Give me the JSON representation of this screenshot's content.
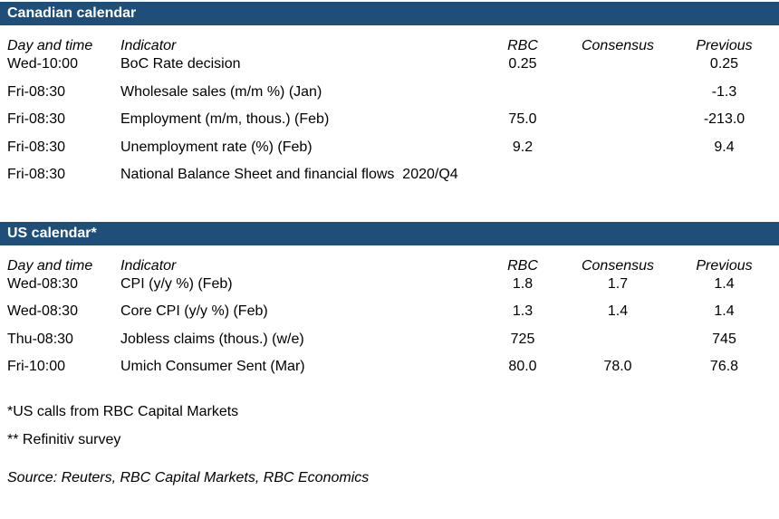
{
  "colors": {
    "section_header_bg": "#1F4E79",
    "section_header_text": "#FFFFFF",
    "body_text": "#000000"
  },
  "tables": [
    {
      "title": "Canadian calendar",
      "columns": [
        "Day and time",
        "Indicator",
        "RBC",
        "Consensus",
        "Previous"
      ],
      "rows": [
        {
          "time": "Wed-10:00",
          "indicator": "BoC Rate decision",
          "rbc": "0.25",
          "consensus": "",
          "previous": "0.25"
        },
        {
          "time": "Fri-08:30",
          "indicator": "Wholesale sales (m/m %) (Jan)",
          "rbc": "",
          "consensus": "",
          "previous": "-1.3"
        },
        {
          "time": "Fri-08:30",
          "indicator": "Employment (m/m, thous.) (Feb)",
          "rbc": "75.0",
          "consensus": "",
          "previous": "-213.0"
        },
        {
          "time": "Fri-08:30",
          "indicator": "Unemployment rate (%) (Feb)",
          "rbc": "9.2",
          "consensus": "",
          "previous": "9.4"
        },
        {
          "time": "Fri-08:30",
          "indicator": "National Balance Sheet and financial flows  2020/Q4",
          "rbc": "",
          "consensus": "",
          "previous": ""
        }
      ]
    },
    {
      "title": "US calendar*",
      "columns": [
        "Day and time",
        "Indicator",
        "RBC",
        "Consensus",
        "Previous"
      ],
      "rows": [
        {
          "time": "Wed-08:30",
          "indicator": "CPI (y/y %) (Feb)",
          "rbc": "1.8",
          "consensus": "1.7",
          "previous": "1.4"
        },
        {
          "time": "Wed-08:30",
          "indicator": "Core CPI (y/y %) (Feb)",
          "rbc": "1.3",
          "consensus": "1.4",
          "previous": "1.4"
        },
        {
          "time": "Thu-08:30",
          "indicator": "Jobless claims (thous.) (w/e)",
          "rbc": "725",
          "consensus": "",
          "previous": "745"
        },
        {
          "time": "Fri-10:00",
          "indicator": "Umich Consumer Sent (Mar)",
          "rbc": "80.0",
          "consensus": "78.0",
          "previous": "76.8"
        }
      ]
    }
  ],
  "footnotes": [
    "*US calls from RBC Capital Markets",
    "** Refinitiv survey"
  ],
  "source": "Source: Reuters, RBC Capital Markets, RBC Economics"
}
